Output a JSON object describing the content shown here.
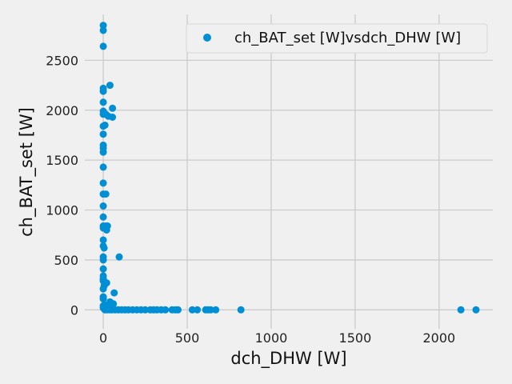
{
  "chart_data": {
    "type": "scatter",
    "xlabel": "dch_DHW [W]",
    "ylabel": "ch_BAT_set [W]",
    "xlim": [
      -110,
      2320
    ],
    "ylim": [
      -190,
      2960
    ],
    "xticks": [
      0,
      500,
      1000,
      1500,
      2000
    ],
    "yticks": [
      0,
      500,
      1000,
      1500,
      2000,
      2500
    ],
    "grid": true,
    "legend_position": "top-right",
    "colors": {
      "marker": "#008fd5",
      "grid": "#cbcbcb",
      "background": "#f0f0f0"
    },
    "series": [
      {
        "name": "ch_BAT_set [W]vsdch_DHW [W]",
        "points": [
          [
            0,
            2850
          ],
          [
            0,
            2800
          ],
          [
            0,
            2640
          ],
          [
            0,
            2220
          ],
          [
            0,
            2190
          ],
          [
            40,
            2250
          ],
          [
            0,
            2080
          ],
          [
            55,
            2020
          ],
          [
            0,
            1990
          ],
          [
            0,
            1960
          ],
          [
            15,
            1960
          ],
          [
            30,
            1940
          ],
          [
            55,
            1930
          ],
          [
            0,
            1840
          ],
          [
            10,
            1850
          ],
          [
            0,
            1760
          ],
          [
            0,
            1650
          ],
          [
            0,
            1620
          ],
          [
            0,
            1580
          ],
          [
            0,
            1430
          ],
          [
            0,
            1270
          ],
          [
            0,
            1160
          ],
          [
            15,
            1160
          ],
          [
            0,
            1040
          ],
          [
            0,
            930
          ],
          [
            0,
            840
          ],
          [
            15,
            840
          ],
          [
            25,
            840
          ],
          [
            0,
            820
          ],
          [
            20,
            800
          ],
          [
            0,
            700
          ],
          [
            0,
            640
          ],
          [
            5,
            620
          ],
          [
            0,
            530
          ],
          [
            0,
            500
          ],
          [
            95,
            530
          ],
          [
            0,
            410
          ],
          [
            0,
            340
          ],
          [
            0,
            310
          ],
          [
            0,
            290
          ],
          [
            20,
            270
          ],
          [
            5,
            240
          ],
          [
            0,
            210
          ],
          [
            65,
            170
          ],
          [
            0,
            130
          ],
          [
            0,
            110
          ],
          [
            40,
            80
          ],
          [
            60,
            60
          ],
          [
            10,
            50
          ],
          [
            0,
            40
          ],
          [
            30,
            30
          ],
          [
            0,
            20
          ],
          [
            5,
            10
          ],
          [
            10,
            0
          ],
          [
            20,
            0
          ],
          [
            35,
            0
          ],
          [
            50,
            0
          ],
          [
            70,
            0
          ],
          [
            90,
            0
          ],
          [
            110,
            0
          ],
          [
            130,
            0
          ],
          [
            150,
            0
          ],
          [
            175,
            0
          ],
          [
            200,
            0
          ],
          [
            225,
            0
          ],
          [
            250,
            0
          ],
          [
            280,
            0
          ],
          [
            300,
            0
          ],
          [
            320,
            0
          ],
          [
            345,
            0
          ],
          [
            370,
            0
          ],
          [
            410,
            0
          ],
          [
            430,
            0
          ],
          [
            445,
            0
          ],
          [
            530,
            0
          ],
          [
            560,
            0
          ],
          [
            610,
            0
          ],
          [
            625,
            0
          ],
          [
            640,
            0
          ],
          [
            670,
            0
          ],
          [
            820,
            0
          ],
          [
            2130,
            0
          ],
          [
            2220,
            0
          ]
        ]
      }
    ]
  }
}
